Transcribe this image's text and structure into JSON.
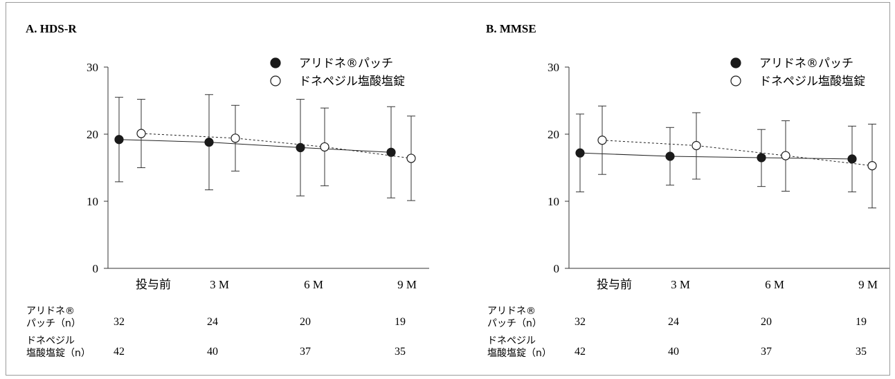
{
  "chart_data": [
    {
      "type": "line",
      "title": "A.  HDS-R",
      "categories": [
        "投与前",
        "3 M",
        "6 M",
        "9 M"
      ],
      "yticks": [
        "0",
        "10",
        "20",
        "30"
      ],
      "ylim": [
        0,
        30
      ],
      "series": [
        {
          "name": "アリドネ®パッチ",
          "marker": "filled",
          "line": "solid",
          "values": [
            19.2,
            18.8,
            18.0,
            17.3
          ],
          "err_low": [
            12.9,
            11.7,
            10.8,
            10.5
          ],
          "err_high": [
            25.5,
            25.9,
            25.2,
            24.1
          ],
          "n": [
            "32",
            "24",
            "20",
            "19"
          ]
        },
        {
          "name": "ドネペジル塩酸塩錠",
          "marker": "open",
          "line": "dashed",
          "values": [
            20.1,
            19.4,
            18.1,
            16.4
          ],
          "err_low": [
            15.0,
            14.5,
            12.3,
            10.1
          ],
          "err_high": [
            25.2,
            24.3,
            23.9,
            22.7
          ],
          "n": [
            "42",
            "40",
            "37",
            "35"
          ]
        }
      ]
    },
    {
      "type": "line",
      "title": "B.  MMSE",
      "categories": [
        "投与前",
        "3 M",
        "6 M",
        "9 M"
      ],
      "yticks": [
        "0",
        "10",
        "20",
        "30"
      ],
      "ylim": [
        0,
        30
      ],
      "series": [
        {
          "name": "アリドネ®パッチ",
          "marker": "filled",
          "line": "solid",
          "values": [
            17.2,
            16.7,
            16.5,
            16.3
          ],
          "err_low": [
            11.4,
            12.4,
            12.2,
            11.4
          ],
          "err_high": [
            23.0,
            21.0,
            20.7,
            21.2
          ],
          "n": [
            "32",
            "24",
            "20",
            "19"
          ]
        },
        {
          "name": "ドネペジル塩酸塩錠",
          "marker": "open",
          "line": "dashed",
          "values": [
            19.1,
            18.3,
            16.8,
            15.3
          ],
          "err_low": [
            14.0,
            13.3,
            11.5,
            9.0
          ],
          "err_high": [
            24.2,
            23.2,
            22.0,
            21.5
          ],
          "n": [
            "42",
            "40",
            "37",
            "35"
          ]
        }
      ]
    }
  ],
  "n_table": {
    "row1_label_line1": "アリドネ®",
    "row1_label_line2": "パッチ（n）",
    "row2_label_line1": "ドネペジル",
    "row2_label_line2": "塩酸塩錠（n）"
  }
}
